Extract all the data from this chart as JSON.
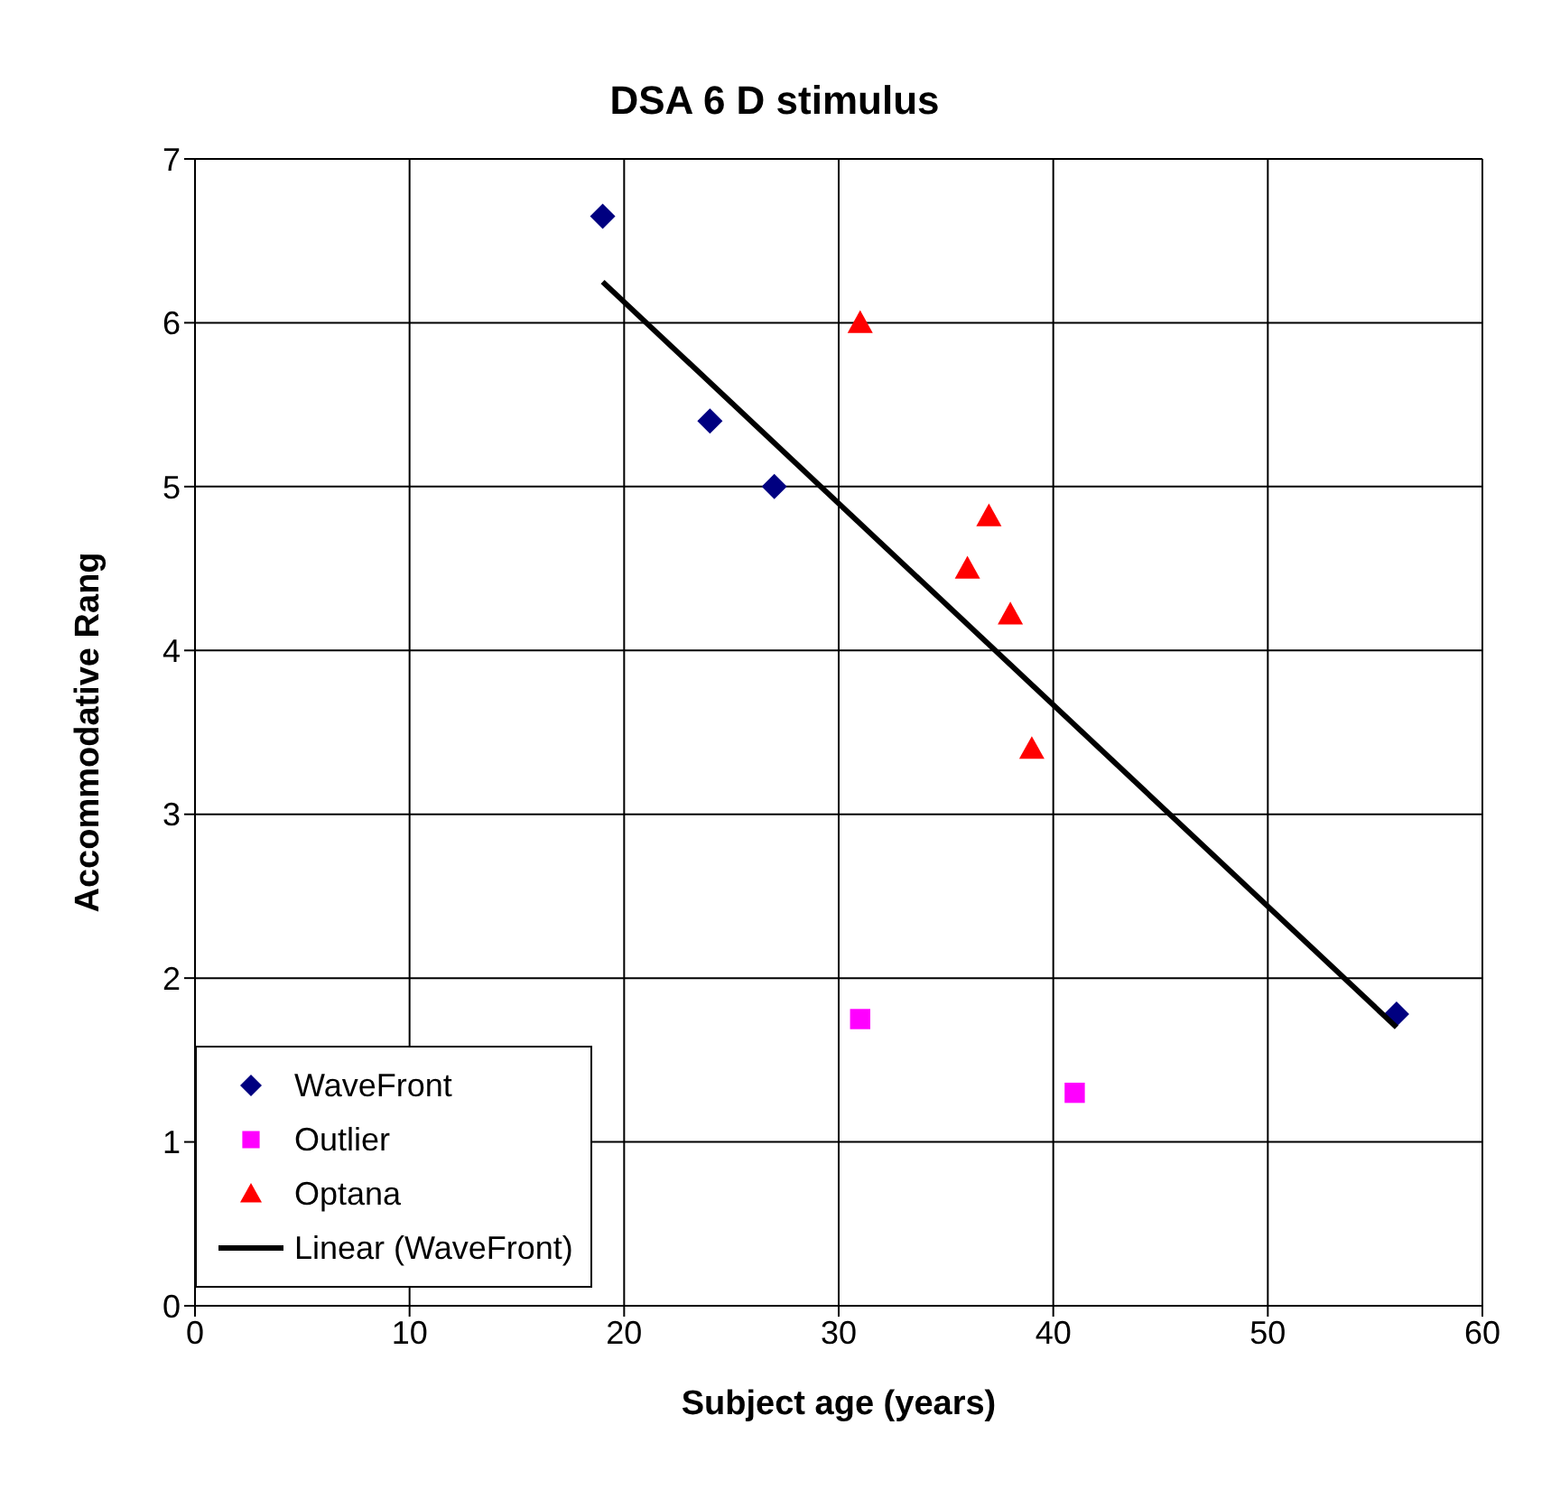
{
  "chart_data": {
    "type": "scatter",
    "title": "DSA 6 D stimulus",
    "xlabel": "Subject age (years)",
    "ylabel": "Accommodative Rang",
    "xlim": [
      0,
      60
    ],
    "xticks": [
      0,
      10,
      20,
      30,
      40,
      50,
      60
    ],
    "ylim": [
      0,
      7
    ],
    "yticks": [
      0,
      1,
      2,
      3,
      4,
      5,
      6,
      7
    ],
    "grid": true,
    "legend": "bottom left",
    "series": [
      {
        "name": "WaveFront",
        "type": "scatter",
        "marker": "diamond",
        "color": "#000080",
        "x": [
          19,
          24,
          27,
          56
        ],
        "values": [
          6.65,
          5.4,
          5.0,
          1.78
        ]
      },
      {
        "name": "Outlier",
        "type": "scatter",
        "marker": "square",
        "color": "#ff00ff",
        "x": [
          31,
          41
        ],
        "values": [
          1.75,
          1.3
        ]
      },
      {
        "name": "Optana",
        "type": "scatter",
        "marker": "triangle",
        "color": "#ff0000",
        "x": [
          31,
          37,
          36,
          38,
          39
        ],
        "values": [
          6.0,
          4.82,
          4.5,
          4.22,
          3.4
        ]
      },
      {
        "name": "Linear (WaveFront)",
        "type": "line",
        "marker": "none",
        "line_style": "solid",
        "color": "#000000",
        "x": [
          19,
          56
        ],
        "values": [
          6.25,
          1.7
        ]
      }
    ]
  }
}
